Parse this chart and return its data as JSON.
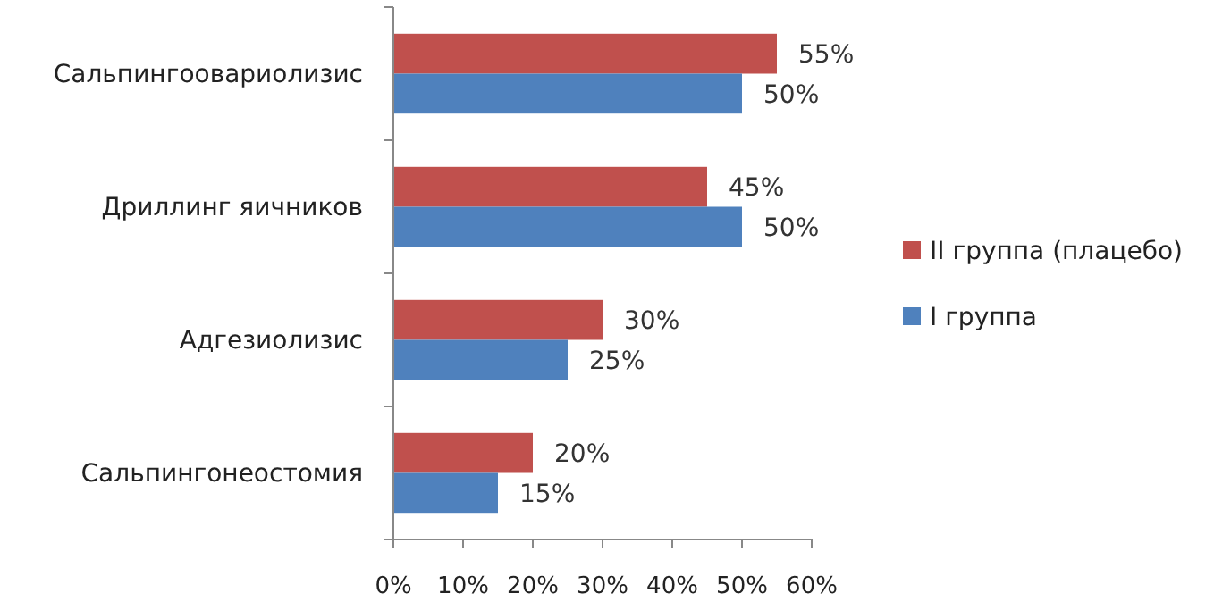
{
  "chart_data": {
    "type": "bar",
    "orientation": "horizontal",
    "categories": [
      "Сальпингоовариолизис",
      "Дриллинг яичников",
      "Адгезиолизис",
      "Сальпингонеостомия"
    ],
    "series": [
      {
        "name": "II группа (плацебо)",
        "color": "#c0504d",
        "values": [
          55,
          45,
          30,
          20
        ],
        "value_labels": [
          "55%",
          "45%",
          "30%",
          "20%"
        ]
      },
      {
        "name": "I группа",
        "color": "#4f81bd",
        "values": [
          50,
          50,
          25,
          15
        ],
        "value_labels": [
          "50%",
          "50%",
          "25%",
          "15%"
        ]
      }
    ],
    "xlim": [
      0,
      60
    ],
    "xticks": [
      {
        "value": 0,
        "label": "0%"
      },
      {
        "value": 10,
        "label": "10%"
      },
      {
        "value": 20,
        "label": "20%"
      },
      {
        "value": 30,
        "label": "30%"
      },
      {
        "value": 40,
        "label": "40%"
      },
      {
        "value": 50,
        "label": "50%"
      },
      {
        "value": 60,
        "label": "60%"
      }
    ],
    "grid": false,
    "legend": "right"
  }
}
